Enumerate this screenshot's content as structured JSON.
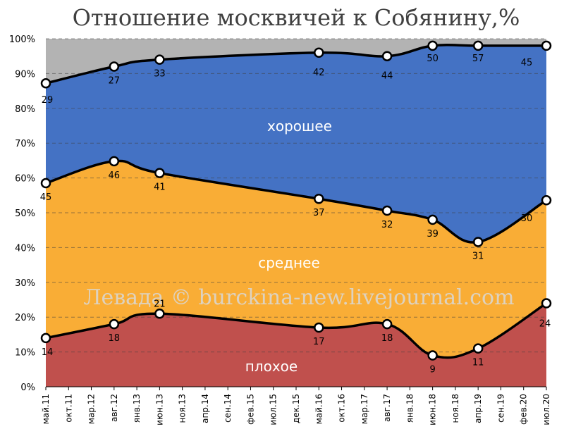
{
  "chart_data": {
    "type": "area",
    "title": "Отношение москвичей к Собянину,%",
    "watermark": "Левада © burckina-new.livejournal.com",
    "y_range": [
      0,
      100
    ],
    "y_ticks": [
      "0%",
      "10%",
      "20%",
      "30%",
      "40%",
      "50%",
      "60%",
      "70%",
      "80%",
      "90%",
      "100%"
    ],
    "x_ticks": [
      "май.11",
      "окт.11",
      "мар.12",
      "авг.12",
      "янв.13",
      "июн.13",
      "ноя.13",
      "апр.14",
      "сен.14",
      "фев.15",
      "июл.15",
      "дек.15",
      "май.16",
      "окт.16",
      "мар.17",
      "авг.17",
      "янв.18",
      "июн.18",
      "ноя.18",
      "апр.19",
      "сен.19",
      "фев.20",
      "июл.20"
    ],
    "dates": [
      "май.11",
      "авг.12",
      "июн.13",
      "май.16",
      "авг.17",
      "июн.18",
      "апр.19",
      "июл.20"
    ],
    "series": [
      {
        "name": "плохое",
        "color": "#c0504d",
        "cumulative": [
          14,
          18,
          21,
          17,
          18,
          9,
          11,
          24
        ],
        "labels": [
          "14",
          "18",
          "21",
          "17",
          "18",
          "9",
          "11",
          "24"
        ]
      },
      {
        "name": "среднее",
        "color": "#f9ad36",
        "cumulative": [
          58.5,
          64.8,
          61.4,
          54,
          50.6,
          48,
          41.6,
          53.6
        ],
        "labels": [
          "45",
          "46",
          "41",
          "37",
          "32",
          "39",
          "31",
          "30"
        ]
      },
      {
        "name": "хорошее",
        "color": "#4472c4",
        "cumulative": [
          87.2,
          92,
          94,
          96,
          95,
          98,
          98,
          98
        ],
        "labels": [
          "29",
          "27",
          "33",
          "42",
          "44",
          "50",
          "57",
          "45"
        ]
      }
    ],
    "remainder_color": "#b3b3b3",
    "grid": true
  }
}
